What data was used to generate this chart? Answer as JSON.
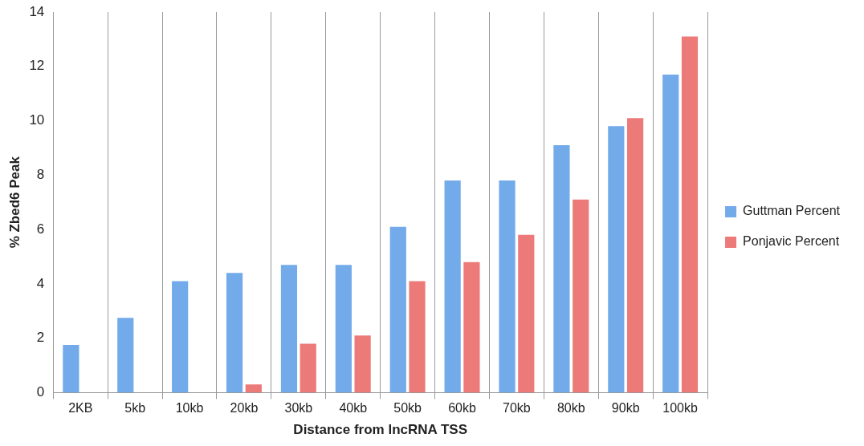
{
  "chart_data": {
    "type": "bar",
    "xlabel": "Distance from lncRNA TSS",
    "ylabel": "% Zbed6 Peak",
    "categories": [
      "2KB",
      "5kb",
      "10kb",
      "20kb",
      "30kb",
      "40kb",
      "50kb",
      "60kb",
      "70kb",
      "80kb",
      "90kb",
      "100kb"
    ],
    "series": [
      {
        "name": "Guttman Percent",
        "color": "#72aaea",
        "values": [
          1.75,
          2.75,
          4.1,
          4.4,
          4.7,
          4.7,
          6.1,
          7.8,
          7.8,
          9.1,
          9.8,
          11.7
        ]
      },
      {
        "name": "Ponjavic Percent",
        "color": "#ec7a78",
        "values": [
          0,
          0,
          0,
          0.3,
          1.8,
          2.1,
          4.1,
          4.8,
          5.8,
          7.1,
          10.1,
          13.1
        ]
      }
    ],
    "ylim": [
      0,
      14
    ],
    "yticks": [
      0,
      2,
      4,
      6,
      8,
      10,
      12,
      14
    ],
    "grid": "x",
    "legend": "right"
  }
}
